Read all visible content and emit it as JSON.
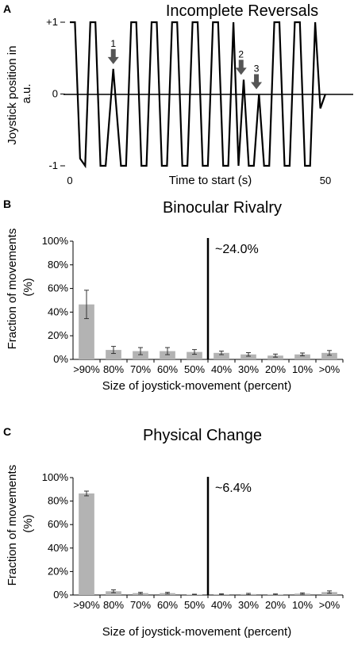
{
  "chart_data": [
    {
      "panel": "A",
      "type": "line",
      "title": "Incomplete Reversals",
      "xlabel": "Time to start (s)",
      "ylabel": "Joystick position in a.u.",
      "xlim": [
        0,
        50
      ],
      "ylim": [
        -1,
        1
      ],
      "x_ticks": [
        "0",
        "50"
      ],
      "y_ticks": [
        "+1",
        "0",
        "-1"
      ],
      "series": [
        {
          "x": [
            0,
            1,
            2,
            3,
            4,
            5,
            6,
            7,
            8.5,
            10,
            11,
            12,
            13,
            14,
            15,
            16,
            17,
            18,
            19,
            20,
            21,
            22,
            23,
            24,
            25,
            26,
            27,
            28,
            29,
            30,
            31,
            32,
            33,
            34,
            35,
            36,
            37,
            38,
            39,
            40,
            41,
            42,
            43,
            44,
            45,
            46,
            47,
            48,
            49,
            50
          ],
          "y": [
            1,
            1,
            -0.9,
            -1,
            1,
            1,
            -1,
            -1,
            0.35,
            -1,
            -1,
            1,
            1,
            -1,
            -1,
            1,
            1,
            -1,
            -1,
            1,
            1,
            -1,
            -1,
            1,
            1,
            -1,
            -1,
            1,
            1,
            -1,
            -1,
            1,
            -1,
            0.2,
            -1,
            -1,
            0.0,
            -1,
            -1,
            1,
            1,
            -1,
            -1,
            1,
            1,
            -1,
            -1,
            1,
            -0.2,
            0
          ]
        }
      ],
      "markers": [
        "1",
        "2",
        "3"
      ]
    },
    {
      "panel": "B",
      "type": "bar",
      "title": "Binocular Rivalry",
      "xlabel": "Size of joystick-movement (percent)",
      "ylabel": "Fraction of movements (%)",
      "ylim": [
        0,
        100
      ],
      "y_ticks": [
        "0%",
        "20%",
        "40%",
        "60%",
        "80%",
        "100%"
      ],
      "categories": [
        ">90%",
        "80%",
        "70%",
        "60%",
        "50%",
        "40%",
        "30%",
        "20%",
        "10%",
        ">0%"
      ],
      "values": [
        46.5,
        8,
        7,
        7,
        6.3,
        5.5,
        4.2,
        3.2,
        4.2,
        5.5
      ],
      "errors": [
        12,
        3,
        3,
        3,
        2,
        1.5,
        1.5,
        1.3,
        1.2,
        2
      ],
      "annotation": "~24.0%",
      "divider_after_index": 4
    },
    {
      "panel": "C",
      "type": "bar",
      "title": "Physical Change",
      "xlabel": "Size of joystick-movement (percent)",
      "ylabel": "Fraction of movements (%)",
      "ylim": [
        0,
        100
      ],
      "y_ticks": [
        "0%",
        "20%",
        "40%",
        "60%",
        "80%",
        "100%"
      ],
      "categories": [
        ">90%",
        "80%",
        "70%",
        "60%",
        "50%",
        "40%",
        "30%",
        "20%",
        "10%",
        ">0%"
      ],
      "values": [
        86.5,
        3.2,
        1.6,
        1.6,
        0.4,
        0.6,
        0.8,
        0.5,
        1.2,
        2.5
      ],
      "errors": [
        2,
        1.2,
        0.7,
        0.7,
        0.3,
        0.4,
        0.6,
        0.4,
        0.6,
        1
      ],
      "annotation": "~6.4%",
      "divider_after_index": 4
    }
  ]
}
